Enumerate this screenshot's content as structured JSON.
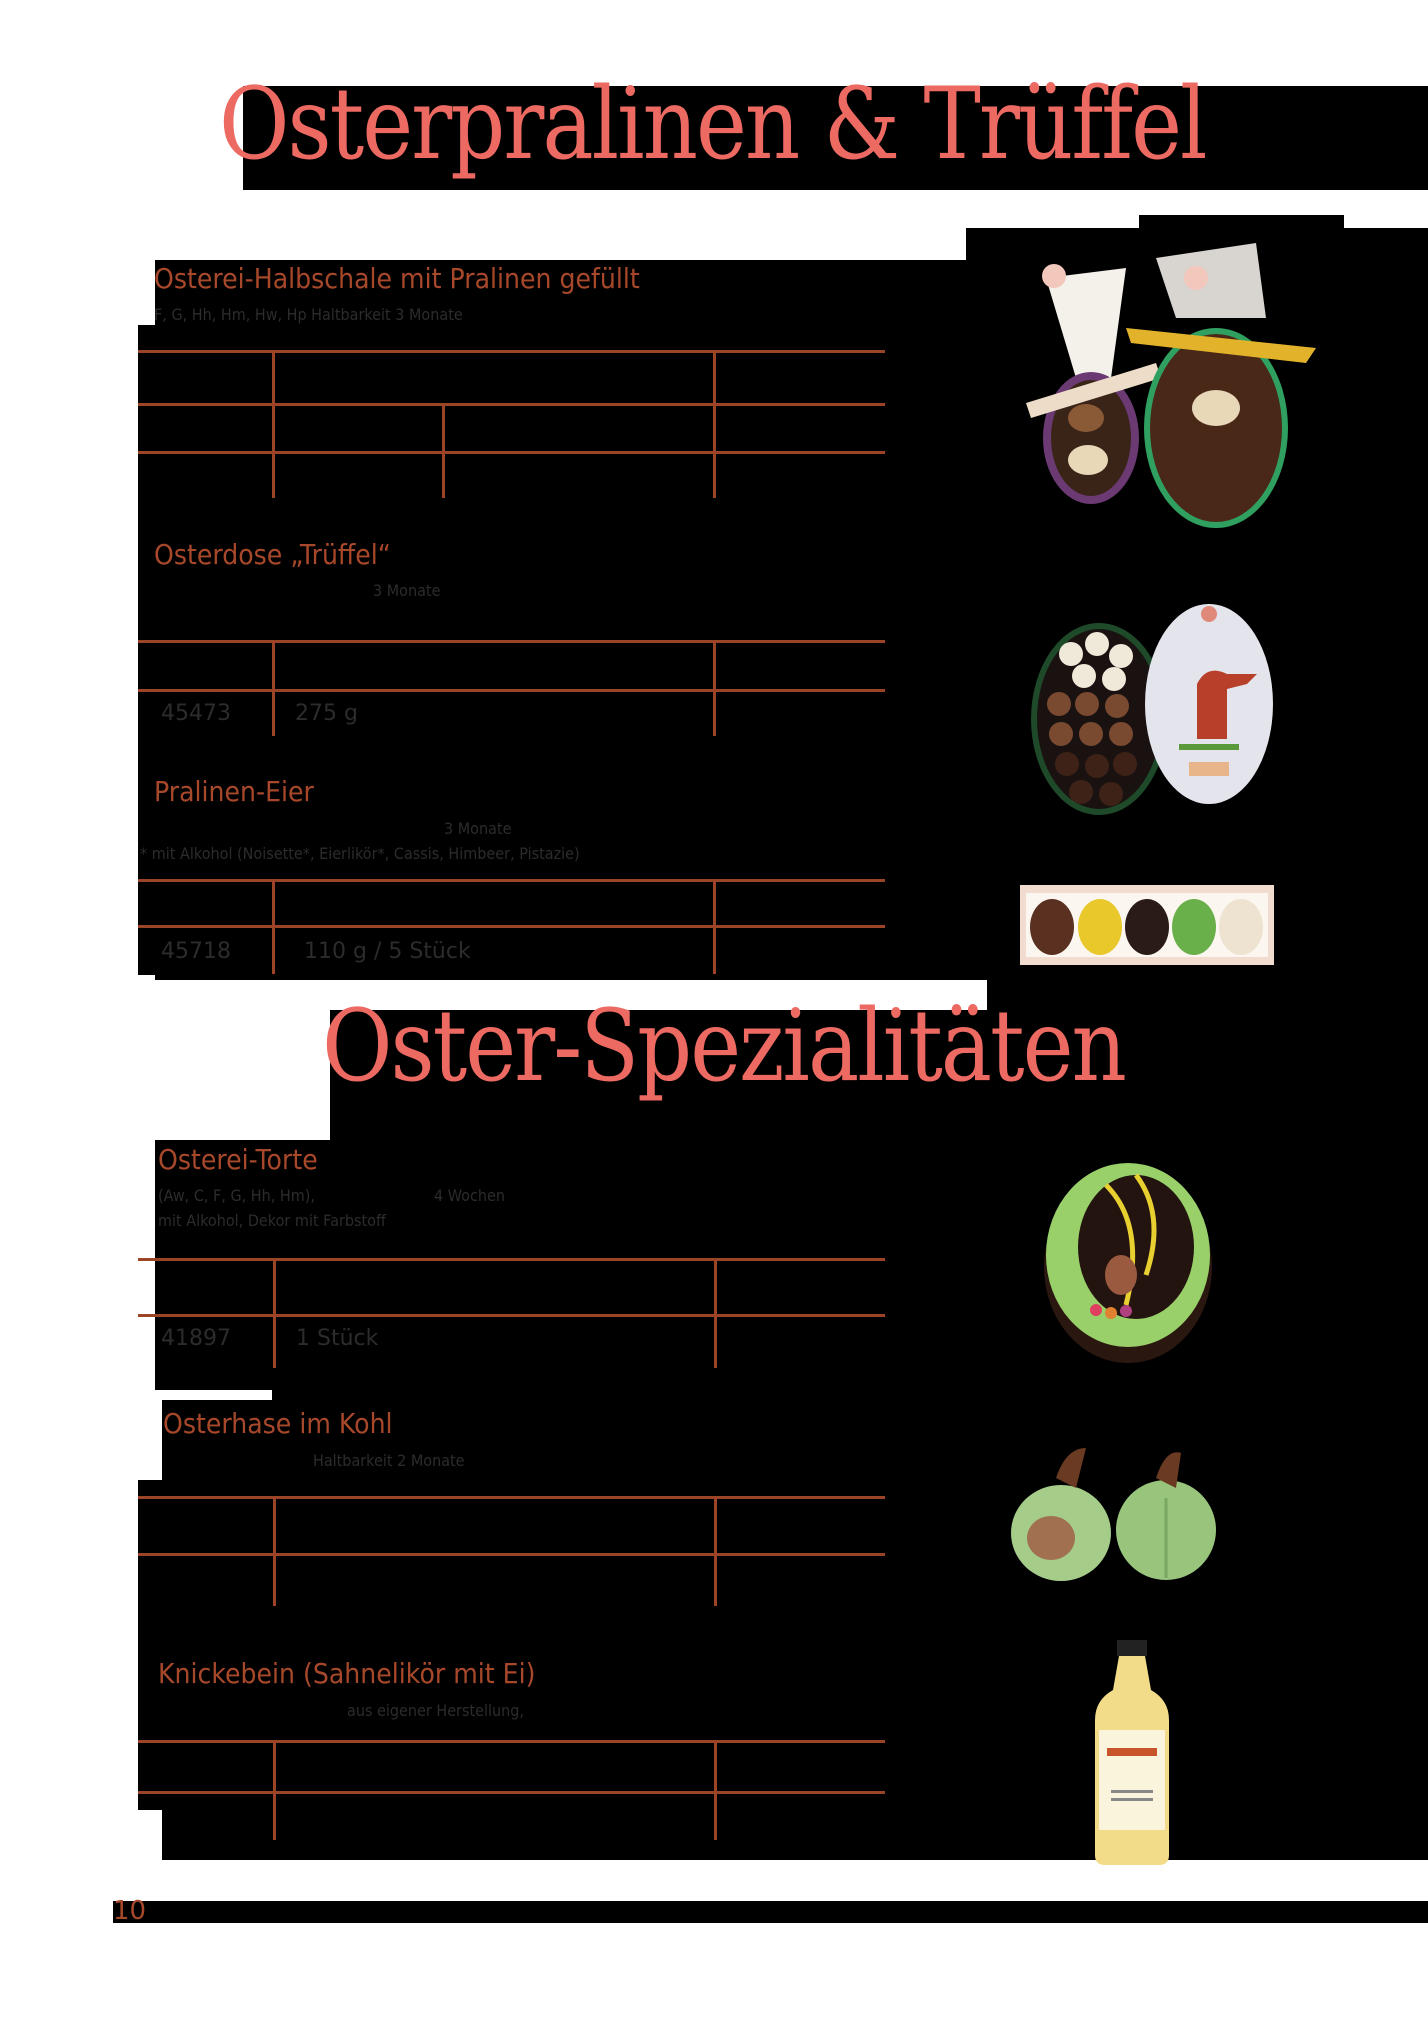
{
  "page": {
    "number": "10",
    "colors": {
      "heading": "#ec6a62",
      "product_title": "#a8482a",
      "rule": "#9c4426"
    }
  },
  "sections": [
    {
      "title": "Osterpralinen & Trüffel",
      "products": [
        {
          "name": "Osterei-Halbschale mit Pralinen gefüllt",
          "info": "F, G, Hh, Hm, Hw, Hp   Haltbarkeit 3 Monate",
          "image": "easter-egg-halves-in-gift-bags"
        },
        {
          "name": "Osterdose „Trüffel“",
          "info": "3 Monate",
          "rows": [
            {
              "article": "45473",
              "content": "275 g"
            }
          ],
          "image": "egg-shaped-truffle-box-with-bunny-lid"
        },
        {
          "name": "Pralinen-Eier",
          "info": "3 Monate",
          "note": "* mit Alkohol  (Noisette*, Eierlikör*, Cassis, Himbeer, Pistazie)",
          "rows": [
            {
              "article": "45718",
              "content": "110 g / 5 Stück"
            }
          ],
          "image": "five-praline-eggs-in-box"
        }
      ]
    },
    {
      "title": "Oster-Spezialitäten",
      "products": [
        {
          "name": "Osterei-Torte",
          "info": "(Aw, C, F, G, Hh, Hm),",
          "info2": "4 Wochen",
          "note": "mit Alkohol, Dekor mit Farbstoff",
          "rows": [
            {
              "article": "41897",
              "content": "1 Stück"
            }
          ],
          "image": "easter-egg-cake"
        },
        {
          "name": "Osterhase im Kohl",
          "info": "Haltbarkeit 2 Monate",
          "image": "marzipan-bunny-in-cabbage"
        },
        {
          "name": "Knickebein (Sahnelikör mit Ei)",
          "info": "aus eigener Herstellung,",
          "image": "egg-liqueur-bottle"
        }
      ]
    }
  ]
}
